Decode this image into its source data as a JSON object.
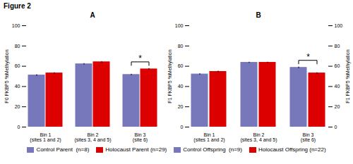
{
  "title": "Figure 2",
  "chart_data": [
    {
      "type": "bar",
      "title": "A",
      "ylabel": "F0 FKBP5 %Methylation",
      "categories": [
        "Bin 1 (sites 1 and 2)",
        "Bin 2 (sites 3, 4 and 5)",
        "Bin 3 (site 6)"
      ],
      "series": [
        {
          "name": "Control Parent  (n=8)",
          "color": "#7777bb",
          "values": [
            51.0,
            62.0,
            51.5
          ],
          "errors": [
            0.8,
            0.7,
            0.7
          ]
        },
        {
          "name": "Holocaust Parent (n=29)",
          "color": "#dd0000",
          "values": [
            53.0,
            64.0,
            57.0
          ],
          "errors": [
            0.7,
            0.6,
            0.8
          ]
        }
      ],
      "ylim": [
        0,
        100
      ],
      "yticks": [
        0,
        20,
        40,
        60,
        80,
        100
      ],
      "annotations": [
        {
          "text": "*",
          "category": "Bin 3 (site 6)"
        }
      ],
      "legend": "bottom"
    },
    {
      "type": "bar",
      "title": "B",
      "ylabel": "F1 FKBP5 %Methylation",
      "categories": [
        "Bin 1 (sites 1 and 2)",
        "Bin 2 (sites 3, 4 and 5)",
        "Bin 3 (site 6)"
      ],
      "series": [
        {
          "name": "Control Offspring  (n=9)",
          "color": "#7777bb",
          "values": [
            52.0,
            63.5,
            58.5
          ],
          "errors": [
            0.7,
            0.6,
            0.8
          ]
        },
        {
          "name": "Holocaust Offspring (n=22)",
          "color": "#dd0000",
          "values": [
            54.5,
            63.5,
            53.0
          ],
          "errors": [
            0.8,
            0.6,
            0.7
          ]
        }
      ],
      "ylim": [
        0,
        100
      ],
      "yticks": [
        0,
        20,
        40,
        60,
        80,
        100
      ],
      "y2label": "F1 FKBP5 %Methylation",
      "y2lim": [
        0,
        100
      ],
      "y2ticks": [
        0,
        20,
        40,
        60,
        80,
        100
      ],
      "annotations": [
        {
          "text": "*",
          "category": "Bin 3 (site 6)"
        }
      ],
      "legend": "bottom"
    }
  ]
}
